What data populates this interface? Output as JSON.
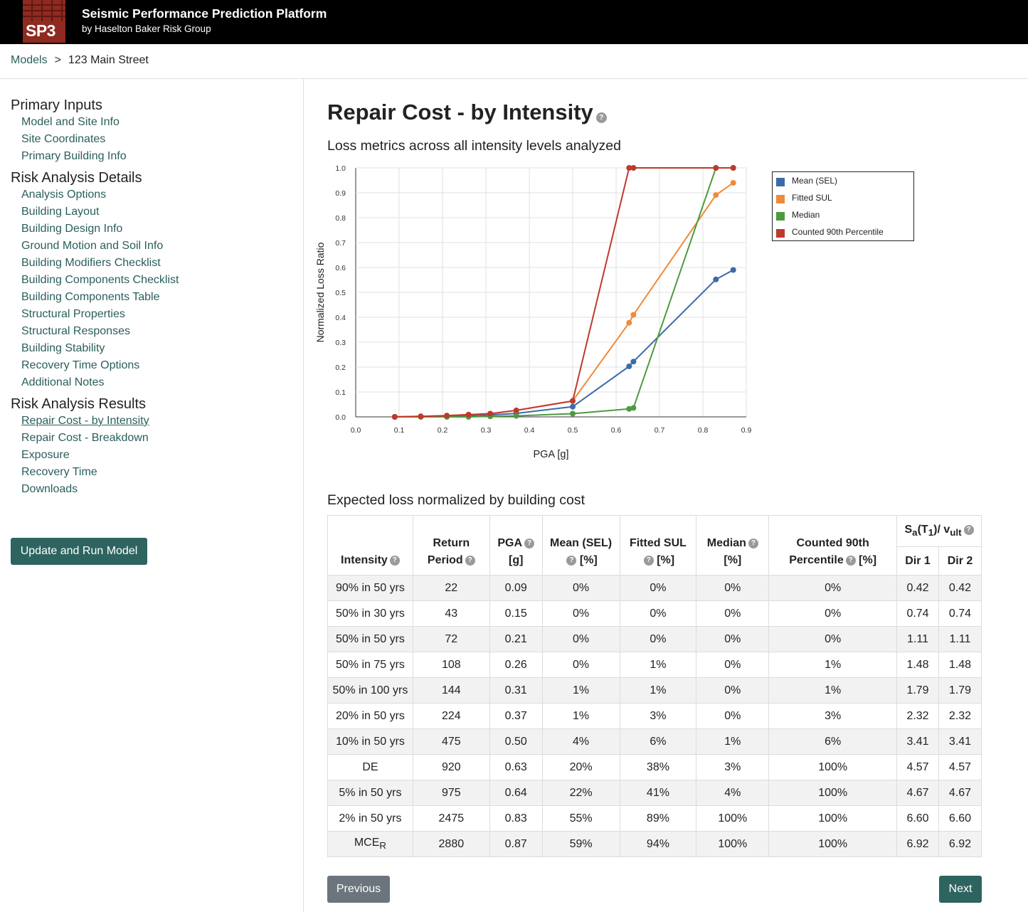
{
  "header": {
    "logo_text": "SP3",
    "title": "Seismic Performance Prediction Platform",
    "subtitle": "by Haselton Baker Risk Group"
  },
  "breadcrumb": {
    "root": "Models",
    "separator": ">",
    "current": "123 Main Street"
  },
  "sidebar": {
    "sections": [
      {
        "title": "Primary Inputs",
        "items": [
          "Model and Site Info",
          "Site Coordinates",
          "Primary Building Info"
        ]
      },
      {
        "title": "Risk Analysis Details",
        "items": [
          "Analysis Options",
          "Building Layout",
          "Building Design Info",
          "Ground Motion and Soil Info",
          "Building Modifiers Checklist",
          "Building Components Checklist",
          "Building Components Table",
          "Structural Properties",
          "Structural Responses",
          "Building Stability",
          "Recovery Time Options",
          "Additional Notes"
        ]
      },
      {
        "title": "Risk Analysis Results",
        "items": [
          "Repair Cost - by Intensity",
          "Repair Cost - Breakdown",
          "Exposure",
          "Recovery Time",
          "Downloads"
        ]
      }
    ],
    "active_item": "Repair Cost - by Intensity",
    "run_button": "Update and Run Model"
  },
  "main": {
    "title": "Repair Cost - by Intensity",
    "chart_heading": "Loss metrics across all intensity levels analyzed",
    "table_heading": "Expected loss normalized by building cost",
    "prev_button": "Previous",
    "next_button": "Next"
  },
  "chart_data": {
    "type": "line",
    "xlabel": "PGA [g]",
    "ylabel": "Normalized Loss Ratio",
    "xlim": [
      0.0,
      0.9
    ],
    "ylim": [
      0.0,
      1.0
    ],
    "x_ticks": [
      "0.0",
      "0.1",
      "0.2",
      "0.3",
      "0.4",
      "0.5",
      "0.6",
      "0.7",
      "0.8",
      "0.9"
    ],
    "y_ticks": [
      "0.0",
      "0.1",
      "0.2",
      "0.3",
      "0.4",
      "0.5",
      "0.6",
      "0.7",
      "0.8",
      "0.9",
      "1.0"
    ],
    "grid": true,
    "legend_position": "right",
    "x": [
      0.09,
      0.15,
      0.21,
      0.26,
      0.31,
      0.37,
      0.5,
      0.63,
      0.64,
      0.83,
      0.87
    ],
    "series": [
      {
        "name": "Mean (SEL)",
        "color": "#3b6aa8",
        "values": [
          0.0,
          0.002,
          0.004,
          0.005,
          0.008,
          0.014,
          0.041,
          0.203,
          0.222,
          0.552,
          0.59
        ]
      },
      {
        "name": "Fitted SUL",
        "color": "#f08a3a",
        "values": [
          0.0,
          0.002,
          0.005,
          0.009,
          0.013,
          0.026,
          0.064,
          0.378,
          0.41,
          0.891,
          0.94
        ]
      },
      {
        "name": "Median",
        "color": "#4e9a3f",
        "values": [
          0.0,
          0.0,
          0.0,
          0.0,
          0.002,
          0.004,
          0.013,
          0.032,
          0.036,
          1.0,
          1.0
        ]
      },
      {
        "name": "Counted 90th Percentile",
        "color": "#c0392b",
        "values": [
          0.0,
          0.002,
          0.005,
          0.009,
          0.013,
          0.026,
          0.064,
          1.0,
          1.0,
          1.0,
          1.0
        ]
      }
    ]
  },
  "table": {
    "headers": {
      "intensity": "Intensity",
      "return_period_1": "Return",
      "return_period_2": "Period",
      "pga_1": "PGA",
      "pga_2": "[g]",
      "mean_1": "Mean (SEL)",
      "mean_2": "[%]",
      "sul_1": "Fitted SUL",
      "sul_2": "[%]",
      "median_1": "Median",
      "median_2": "[%]",
      "c90_1": "Counted 90th",
      "c90_2": "Percentile",
      "c90_3": "[%]",
      "sa_pre": "S",
      "sa_sub": "a",
      "sa_mid1": "(T",
      "sa_t_sub": "1",
      "sa_mid2": ")/ v",
      "sa_ult_sub": "ult",
      "dir1": "Dir 1",
      "dir2": "Dir 2"
    },
    "rows": [
      {
        "intensity": "90% in 50 yrs",
        "return_period": "22",
        "pga": "0.09",
        "mean": "0%",
        "sul": "0%",
        "median": "0%",
        "c90": "0%",
        "dir1": "0.42",
        "dir2": "0.42"
      },
      {
        "intensity": "50% in 30 yrs",
        "return_period": "43",
        "pga": "0.15",
        "mean": "0%",
        "sul": "0%",
        "median": "0%",
        "c90": "0%",
        "dir1": "0.74",
        "dir2": "0.74"
      },
      {
        "intensity": "50% in 50 yrs",
        "return_period": "72",
        "pga": "0.21",
        "mean": "0%",
        "sul": "0%",
        "median": "0%",
        "c90": "0%",
        "dir1": "1.11",
        "dir2": "1.11"
      },
      {
        "intensity": "50% in 75 yrs",
        "return_period": "108",
        "pga": "0.26",
        "mean": "0%",
        "sul": "1%",
        "median": "0%",
        "c90": "1%",
        "dir1": "1.48",
        "dir2": "1.48"
      },
      {
        "intensity": "50% in 100 yrs",
        "return_period": "144",
        "pga": "0.31",
        "mean": "1%",
        "sul": "1%",
        "median": "0%",
        "c90": "1%",
        "dir1": "1.79",
        "dir2": "1.79"
      },
      {
        "intensity": "20% in 50 yrs",
        "return_period": "224",
        "pga": "0.37",
        "mean": "1%",
        "sul": "3%",
        "median": "0%",
        "c90": "3%",
        "dir1": "2.32",
        "dir2": "2.32"
      },
      {
        "intensity": "10% in 50 yrs",
        "return_period": "475",
        "pga": "0.50",
        "mean": "4%",
        "sul": "6%",
        "median": "1%",
        "c90": "6%",
        "dir1": "3.41",
        "dir2": "3.41"
      },
      {
        "intensity": "DE",
        "return_period": "920",
        "pga": "0.63",
        "mean": "20%",
        "sul": "38%",
        "median": "3%",
        "c90": "100%",
        "dir1": "4.57",
        "dir2": "4.57"
      },
      {
        "intensity": "5% in 50 yrs",
        "return_period": "975",
        "pga": "0.64",
        "mean": "22%",
        "sul": "41%",
        "median": "4%",
        "c90": "100%",
        "dir1": "4.67",
        "dir2": "4.67"
      },
      {
        "intensity": "2% in 50 yrs",
        "return_period": "2475",
        "pga": "0.83",
        "mean": "55%",
        "sul": "89%",
        "median": "100%",
        "c90": "100%",
        "dir1": "6.60",
        "dir2": "6.60"
      },
      {
        "intensity": "MCE",
        "intensity_sub": "R",
        "return_period": "2880",
        "pga": "0.87",
        "mean": "59%",
        "sul": "94%",
        "median": "100%",
        "c90": "100%",
        "dir1": "6.92",
        "dir2": "6.92"
      }
    ]
  }
}
